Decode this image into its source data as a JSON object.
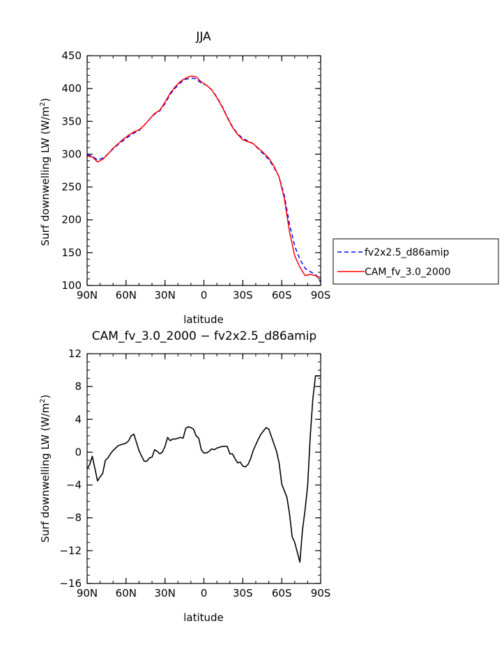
{
  "chart_data": [
    {
      "type": "line",
      "title": "JJA",
      "xlabel": "latitude",
      "ylabel": "Surf downwelling LW (W/m",
      "ylabel_sup": "2",
      "ylabel_close": ")",
      "xlim": [
        90,
        -90
      ],
      "ylim": [
        100,
        450
      ],
      "xticks": [
        90,
        60,
        30,
        0,
        -30,
        -60,
        -90
      ],
      "xtick_labels": [
        "90N",
        "60N",
        "30N",
        "0",
        "30S",
        "60S",
        "90S"
      ],
      "yticks": [
        100,
        150,
        200,
        250,
        300,
        350,
        400,
        450
      ],
      "ytick_labels": [
        "100",
        "150",
        "200",
        "250",
        "300",
        "350",
        "400",
        "450"
      ],
      "grid": false,
      "legend_position": "right",
      "series": [
        {
          "name": "fv2x2.5_d86amip",
          "color": "#0000ff",
          "dash": "dashed",
          "x": [
            90,
            86,
            82,
            78,
            74,
            70,
            66,
            62,
            58,
            54,
            50,
            46,
            42,
            38,
            34,
            30,
            26,
            22,
            18,
            14,
            10,
            6,
            2,
            -2,
            -6,
            -10,
            -14,
            -18,
            -22,
            -26,
            -30,
            -34,
            -38,
            -42,
            -46,
            -50,
            -54,
            -58,
            -62,
            -66,
            -70,
            -74,
            -78,
            -82,
            -86,
            -90
          ],
          "y": [
            299,
            297,
            291,
            294,
            300,
            308,
            315,
            321,
            327,
            332,
            336,
            344,
            353,
            361,
            366,
            377,
            391,
            401,
            409,
            414,
            416,
            415,
            408,
            405,
            398,
            387,
            373,
            357,
            342,
            331,
            324,
            320,
            316,
            308,
            300,
            292,
            280,
            265,
            237,
            193,
            160,
            140,
            126,
            121,
            117,
            105
          ]
        },
        {
          "name": "CAM_fv_3.0_2000",
          "color": "#ff0000",
          "dash": "solid",
          "x": [
            90,
            86,
            82,
            78,
            74,
            70,
            66,
            62,
            58,
            54,
            50,
            46,
            42,
            38,
            34,
            30,
            26,
            22,
            18,
            14,
            10,
            6,
            2,
            -2,
            -6,
            -10,
            -14,
            -18,
            -22,
            -26,
            -30,
            -34,
            -38,
            -42,
            -46,
            -50,
            -54,
            -58,
            -62,
            -66,
            -70,
            -74,
            -78,
            -82,
            -86,
            -90
          ],
          "y": [
            297,
            296,
            288,
            292,
            300,
            309,
            316,
            323,
            329,
            334,
            337,
            344,
            353,
            362,
            367,
            379,
            393,
            403,
            411,
            416,
            419,
            418,
            410,
            405,
            398,
            386,
            372,
            356,
            341,
            330,
            322,
            319,
            316,
            309,
            302,
            294,
            282,
            265,
            232,
            182,
            145,
            128,
            115,
            117,
            115,
            112
          ]
        }
      ]
    },
    {
      "type": "line",
      "title": "CAM_fv_3.0_2000 − fv2x2.5_d86amip",
      "xlabel": "latitude",
      "ylabel": "Surf downwelling LW (W/m",
      "ylabel_sup": "2",
      "ylabel_close": ")",
      "xlim": [
        90,
        -90
      ],
      "ylim": [
        -16,
        12
      ],
      "xticks": [
        90,
        60,
        30,
        0,
        -30,
        -60,
        -90
      ],
      "xtick_labels": [
        "90N",
        "60N",
        "30N",
        "0",
        "30S",
        "60S",
        "90S"
      ],
      "yticks": [
        -16,
        -12,
        -8,
        -4,
        0,
        4,
        8,
        12
      ],
      "ytick_labels": [
        "−16",
        "−12",
        "−8",
        "−4",
        "0",
        "4",
        "8",
        "12"
      ],
      "grid": false,
      "series": [
        {
          "color": "#000000",
          "dash": "solid",
          "x": [
            90,
            88,
            86,
            84,
            82,
            80,
            78,
            76,
            74,
            72,
            70,
            68,
            66,
            64,
            62,
            60,
            58,
            56,
            54,
            52,
            50,
            48,
            46,
            44,
            42,
            40,
            38,
            36,
            34,
            32,
            30,
            28,
            26,
            24,
            22,
            20,
            18,
            16,
            14,
            12,
            10,
            8,
            6,
            4,
            2,
            0,
            -2,
            -4,
            -6,
            -8,
            -10,
            -12,
            -14,
            -16,
            -18,
            -20,
            -22,
            -24,
            -26,
            -28,
            -30,
            -32,
            -34,
            -36,
            -38,
            -40,
            -42,
            -44,
            -46,
            -48,
            -50,
            -52,
            -54,
            -56,
            -58,
            -60,
            -62,
            -64,
            -66,
            -68,
            -70,
            -72,
            -74,
            -76,
            -78,
            -80,
            -82,
            -84,
            -86,
            -88,
            -90
          ],
          "y": [
            -2.0,
            -1.5,
            -0.5,
            -2.0,
            -3.5,
            -3.0,
            -2.6,
            -1.0,
            -0.7,
            -0.2,
            0.2,
            0.5,
            0.8,
            0.9,
            1.0,
            1.1,
            1.4,
            2.0,
            2.2,
            1.2,
            0.2,
            -0.5,
            -1.1,
            -1.1,
            -0.7,
            -0.6,
            0.3,
            0.1,
            -0.2,
            0.0,
            0.7,
            1.8,
            1.4,
            1.6,
            1.6,
            1.7,
            1.8,
            1.7,
            2.9,
            3.1,
            3.0,
            2.8,
            2.0,
            1.7,
            0.3,
            -0.1,
            -0.1,
            0.1,
            0.4,
            0.3,
            0.5,
            0.6,
            0.7,
            0.7,
            0.7,
            -0.2,
            -0.2,
            -0.8,
            -1.3,
            -1.2,
            -1.7,
            -1.8,
            -1.5,
            -0.8,
            0.2,
            0.9,
            1.6,
            2.2,
            2.6,
            3.0,
            2.8,
            1.9,
            1.0,
            0.1,
            -1.3,
            -3.9,
            -4.7,
            -5.5,
            -7.5,
            -10.3,
            -11.0,
            -12.2,
            -13.4,
            -9.5,
            -7.0,
            -4.0,
            2.0,
            6.5,
            9.3,
            9.3,
            9.3
          ]
        }
      ]
    }
  ]
}
